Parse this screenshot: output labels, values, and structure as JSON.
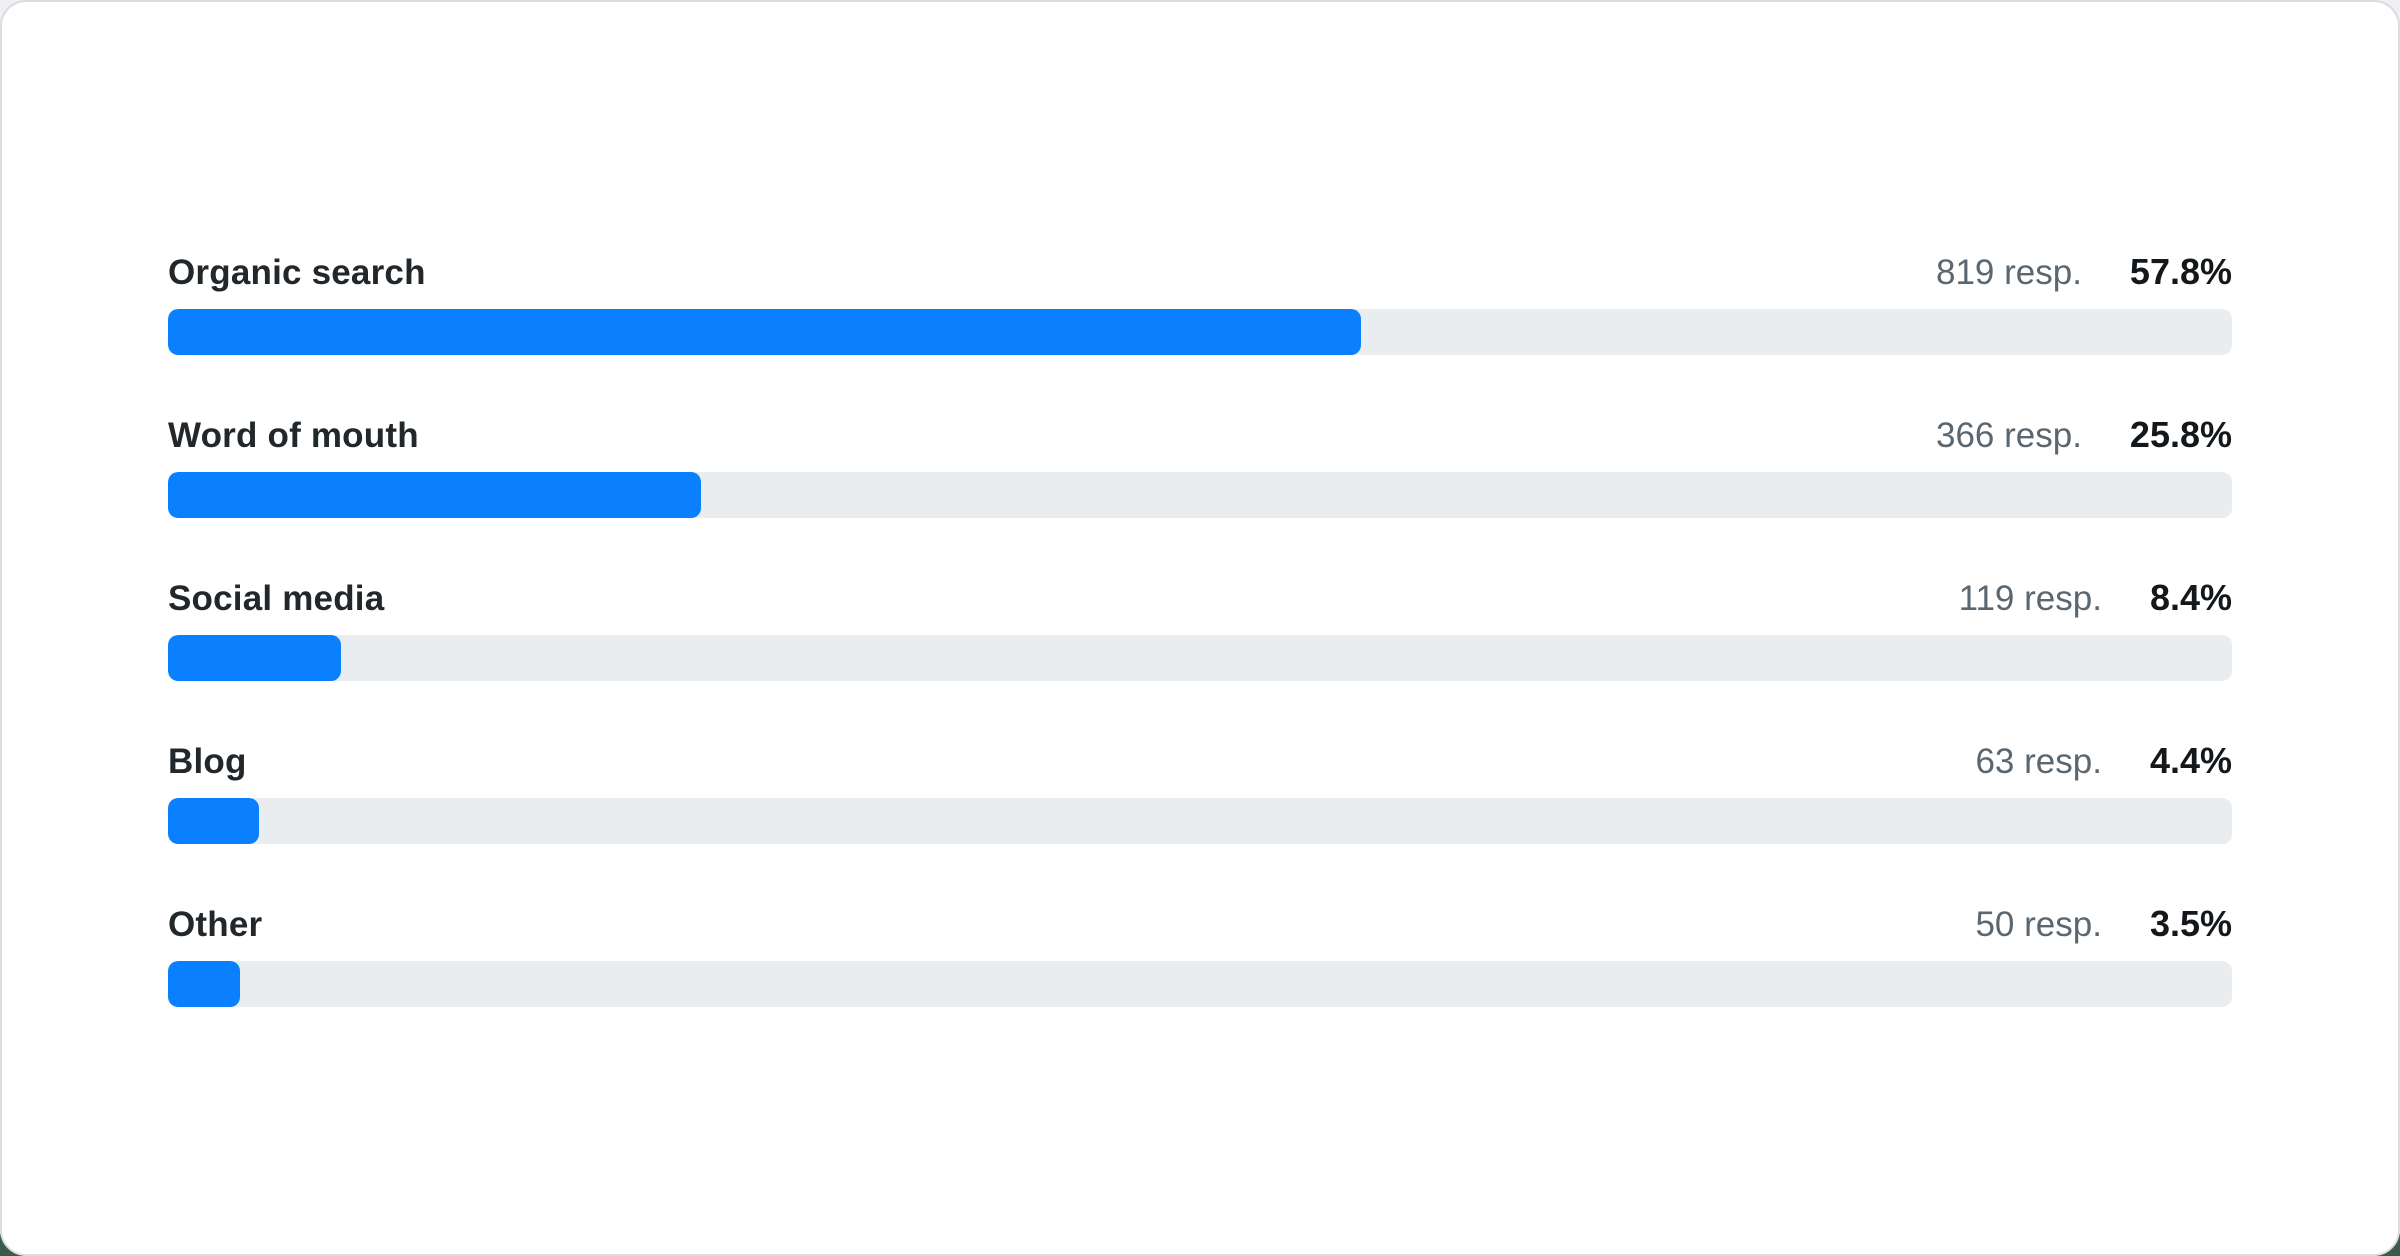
{
  "colors": {
    "bar_fill": "#0b80ff",
    "bar_track": "#e9edf0",
    "label_text": "#21272a",
    "responses_text": "#5b6770",
    "percent_text": "#14181b",
    "card_background": "#ffffff",
    "card_border": "#d9dde1",
    "backdrop_accent": "#3b5a48"
  },
  "chart_data": {
    "type": "bar",
    "orientation": "horizontal",
    "title": "",
    "xlabel": "",
    "ylabel": "",
    "xlim": [
      0,
      100
    ],
    "grid": false,
    "legend": false,
    "categories": [
      "Organic search",
      "Word of mouth",
      "Social media",
      "Blog",
      "Other"
    ],
    "series": [
      {
        "name": "Responses",
        "values": [
          819,
          366,
          119,
          63,
          50
        ]
      }
    ],
    "percentages": [
      57.8,
      25.8,
      8.4,
      4.4,
      3.5
    ],
    "rows": [
      {
        "label": "Organic search",
        "responses": 819,
        "responses_label": "819 resp.",
        "percent": 57.8,
        "percent_label": "57.8%"
      },
      {
        "label": "Word of mouth",
        "responses": 366,
        "responses_label": "366 resp.",
        "percent": 25.8,
        "percent_label": "25.8%"
      },
      {
        "label": "Social media",
        "responses": 119,
        "responses_label": "119 resp.",
        "percent": 8.4,
        "percent_label": "8.4%"
      },
      {
        "label": "Blog",
        "responses": 63,
        "responses_label": "63 resp.",
        "percent": 4.4,
        "percent_label": "4.4%"
      },
      {
        "label": "Other",
        "responses": 50,
        "responses_label": "50 resp.",
        "percent": 3.5,
        "percent_label": "3.5%"
      }
    ]
  }
}
